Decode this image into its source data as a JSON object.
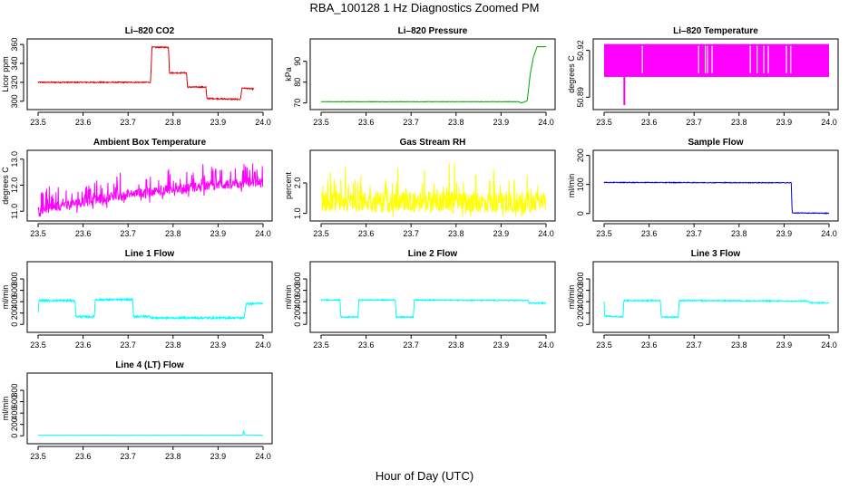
{
  "title": "RBA_100128  1 Hz Diagnostics Zoomed PM",
  "xlabel": "Hour of Day (UTC)",
  "chart_data": [
    {
      "type": "line",
      "title": "Li–820 CO2",
      "ylabel": "Licor ppm",
      "color": "#dd0000",
      "xlim": [
        23.5,
        24.0
      ],
      "ylim": [
        296,
        362
      ],
      "yticks": [
        300,
        320,
        340,
        360
      ],
      "xticks": [
        23.5,
        23.6,
        23.7,
        23.8,
        23.9,
        24.0
      ],
      "noise": 0.6,
      "spikes": 0,
      "series": [
        [
          23.5,
          320
        ],
        [
          23.75,
          320
        ],
        [
          23.753,
          357
        ],
        [
          23.79,
          357
        ],
        [
          23.792,
          330
        ],
        [
          23.83,
          330
        ],
        [
          23.832,
          315
        ],
        [
          23.873,
          315
        ],
        [
          23.875,
          303
        ],
        [
          23.95,
          302
        ],
        [
          23.953,
          314
        ],
        [
          23.98,
          313
        ]
      ]
    },
    {
      "type": "line",
      "title": "Li–820 Pressure",
      "ylabel": "kPa",
      "color": "#00aa00",
      "xlim": [
        23.5,
        24.0
      ],
      "ylim": [
        69,
        99
      ],
      "yticks": [
        70,
        80,
        90
      ],
      "xticks": [
        23.5,
        23.6,
        23.7,
        23.8,
        23.9,
        24.0
      ],
      "noise": 0.1,
      "spikes": 0,
      "series": [
        [
          23.5,
          70.6
        ],
        [
          23.94,
          70.6
        ],
        [
          23.945,
          70
        ],
        [
          23.958,
          71
        ],
        [
          23.965,
          84
        ],
        [
          23.972,
          92
        ],
        [
          23.98,
          97
        ],
        [
          24.0,
          97
        ]
      ]
    },
    {
      "type": "band",
      "title": "Li–820 Temperature",
      "ylabel": "degrees C",
      "color": "#ff00ff",
      "xlim": [
        23.5,
        24.0
      ],
      "ylim": [
        50.885,
        50.925
      ],
      "yticks": [
        50.89,
        50.92
      ],
      "ytick_labels": [
        "50.89",
        "50.92"
      ],
      "xticks": [
        23.5,
        23.6,
        23.7,
        23.8,
        23.9,
        24.0
      ],
      "band": [
        50.903,
        50.924
      ],
      "gaps": [
        23.585,
        23.71,
        23.725,
        23.73,
        23.74,
        23.825,
        23.84,
        23.855,
        23.865,
        23.905,
        23.915
      ],
      "dip": {
        "x": 23.545,
        "y": 50.885
      }
    },
    {
      "type": "line",
      "title": "Ambient Box Temperature",
      "ylabel": "degrees C",
      "color": "#ff00ff",
      "xlim": [
        23.5,
        24.0
      ],
      "ylim": [
        10.8,
        13.2
      ],
      "yticks": [
        11.0,
        12.0,
        13.0
      ],
      "ytick_labels": [
        "11.0",
        "12.0",
        "13.0"
      ],
      "xticks": [
        23.5,
        23.6,
        23.7,
        23.8,
        23.9,
        24.0
      ],
      "noise": 0.18,
      "spikes": 0.55,
      "series": [
        [
          23.5,
          11.05
        ],
        [
          23.6,
          11.35
        ],
        [
          23.7,
          11.65
        ],
        [
          23.8,
          11.85
        ],
        [
          23.9,
          12.0
        ],
        [
          24.0,
          12.1
        ]
      ]
    },
    {
      "type": "line",
      "title": "Gas Stream RH",
      "ylabel": "percent",
      "color": "#ffff00",
      "xlim": [
        23.5,
        24.0
      ],
      "ylim": [
        0.9,
        2.95
      ],
      "yticks": [
        1.0,
        2.0
      ],
      "ytick_labels": [
        "1.0",
        "2.0"
      ],
      "xticks": [
        23.5,
        23.6,
        23.7,
        23.8,
        23.9,
        24.0
      ],
      "noise": 0.35,
      "spikes": 0.7,
      "series": [
        [
          23.5,
          1.4
        ],
        [
          24.0,
          1.35
        ]
      ]
    },
    {
      "type": "line",
      "title": "Sample Flow",
      "ylabel": "ml/min",
      "color": "#0000cc",
      "xlim": [
        23.5,
        24.0
      ],
      "ylim": [
        -10,
        205
      ],
      "yticks": [
        0,
        100,
        200
      ],
      "xticks": [
        23.5,
        23.6,
        23.7,
        23.8,
        23.9,
        24.0
      ],
      "noise": 1.2,
      "spikes": 0,
      "series": [
        [
          23.5,
          107
        ],
        [
          23.9,
          106
        ],
        [
          23.916,
          106
        ],
        [
          23.918,
          2
        ],
        [
          24.0,
          1
        ]
      ]
    },
    {
      "type": "line",
      "title": "Line 1 Flow",
      "ylabel": "ml/min",
      "color": "#00ffff",
      "xlim": [
        23.5,
        24.0
      ],
      "ylim": [
        -60,
        1040
      ],
      "yticks": [
        0,
        200,
        400,
        600,
        800
      ],
      "xticks": [
        23.5,
        23.6,
        23.7,
        23.8,
        23.9,
        24.0
      ],
      "noise": 18,
      "spikes": 0,
      "series": [
        [
          23.5,
          200
        ],
        [
          23.502,
          420
        ],
        [
          23.582,
          420
        ],
        [
          23.584,
          135
        ],
        [
          23.625,
          135
        ],
        [
          23.627,
          435
        ],
        [
          23.71,
          435
        ],
        [
          23.712,
          140
        ],
        [
          23.75,
          140
        ],
        [
          23.752,
          115
        ],
        [
          23.958,
          115
        ],
        [
          23.962,
          360
        ],
        [
          24.0,
          370
        ]
      ]
    },
    {
      "type": "line",
      "title": "Line 2 Flow",
      "ylabel": "ml/min",
      "color": "#00ffff",
      "xlim": [
        23.5,
        24.0
      ],
      "ylim": [
        -60,
        1040
      ],
      "yticks": [
        0,
        200,
        400,
        600,
        800
      ],
      "xticks": [
        23.5,
        23.6,
        23.7,
        23.8,
        23.9,
        24.0
      ],
      "noise": 10,
      "spikes": 0,
      "series": [
        [
          23.5,
          430
        ],
        [
          23.542,
          430
        ],
        [
          23.544,
          130
        ],
        [
          23.582,
          130
        ],
        [
          23.584,
          430
        ],
        [
          23.665,
          430
        ],
        [
          23.667,
          130
        ],
        [
          23.705,
          130
        ],
        [
          23.707,
          430
        ],
        [
          23.96,
          420
        ],
        [
          23.962,
          375
        ],
        [
          24.0,
          375
        ]
      ]
    },
    {
      "type": "line",
      "title": "Line 3 Flow",
      "ylabel": "ml/min",
      "color": "#00ffff",
      "xlim": [
        23.5,
        24.0
      ],
      "ylim": [
        -60,
        1040
      ],
      "yticks": [
        0,
        200,
        400,
        600,
        800
      ],
      "xticks": [
        23.5,
        23.6,
        23.7,
        23.8,
        23.9,
        24.0
      ],
      "noise": 10,
      "spikes": 0,
      "series": [
        [
          23.5,
          400
        ],
        [
          23.501,
          150
        ],
        [
          23.542,
          130
        ],
        [
          23.544,
          420
        ],
        [
          23.625,
          420
        ],
        [
          23.627,
          130
        ],
        [
          23.665,
          130
        ],
        [
          23.667,
          420
        ],
        [
          23.955,
          410
        ],
        [
          23.957,
          380
        ],
        [
          24.0,
          380
        ]
      ]
    },
    {
      "type": "line",
      "title": "Line 4 (LT) Flow",
      "ylabel": "ml/min",
      "color": "#00ffff",
      "xlim": [
        23.5,
        24.0
      ],
      "ylim": [
        -60,
        1040
      ],
      "yticks": [
        0,
        200,
        400,
        600,
        800
      ],
      "xticks": [
        23.5,
        23.6,
        23.7,
        23.8,
        23.9,
        24.0
      ],
      "noise": 1.5,
      "spikes": 0,
      "series": [
        [
          23.5,
          10
        ],
        [
          23.955,
          10
        ],
        [
          23.957,
          90
        ],
        [
          23.959,
          15
        ],
        [
          24.0,
          10
        ]
      ]
    }
  ]
}
